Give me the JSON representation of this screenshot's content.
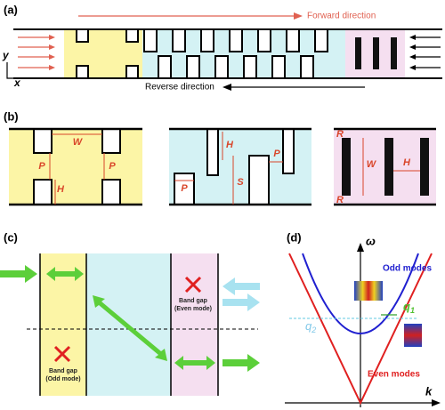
{
  "panel_a": {
    "label": "(a)",
    "forward": "Forward direction",
    "reverse": "Reverse direction",
    "axis_y": "y",
    "axis_x": "x"
  },
  "panel_b": {
    "label": "(b)",
    "yellow": {
      "w": "W",
      "p_left": "P",
      "p_right": "P",
      "h": "H"
    },
    "blue": {
      "h": "H",
      "p_bottom": "P",
      "s": "S",
      "p_top": "P"
    },
    "pink": {
      "r_top": "R",
      "w": "W",
      "h": "H",
      "r_bottom": "R"
    }
  },
  "panel_c": {
    "label": "(c)",
    "band_gap_even": [
      "Band gap",
      "(Even mode)"
    ],
    "band_gap_odd": [
      "Band gap",
      "(Odd mode)"
    ]
  },
  "panel_d": {
    "label": "(d)",
    "omega": "ω",
    "k": "k",
    "odd": "Odd modes",
    "even": "Even modes",
    "q1": {
      "symbol": "q",
      "index": "1"
    },
    "q2": {
      "symbol": "q",
      "index": "2"
    }
  }
}
